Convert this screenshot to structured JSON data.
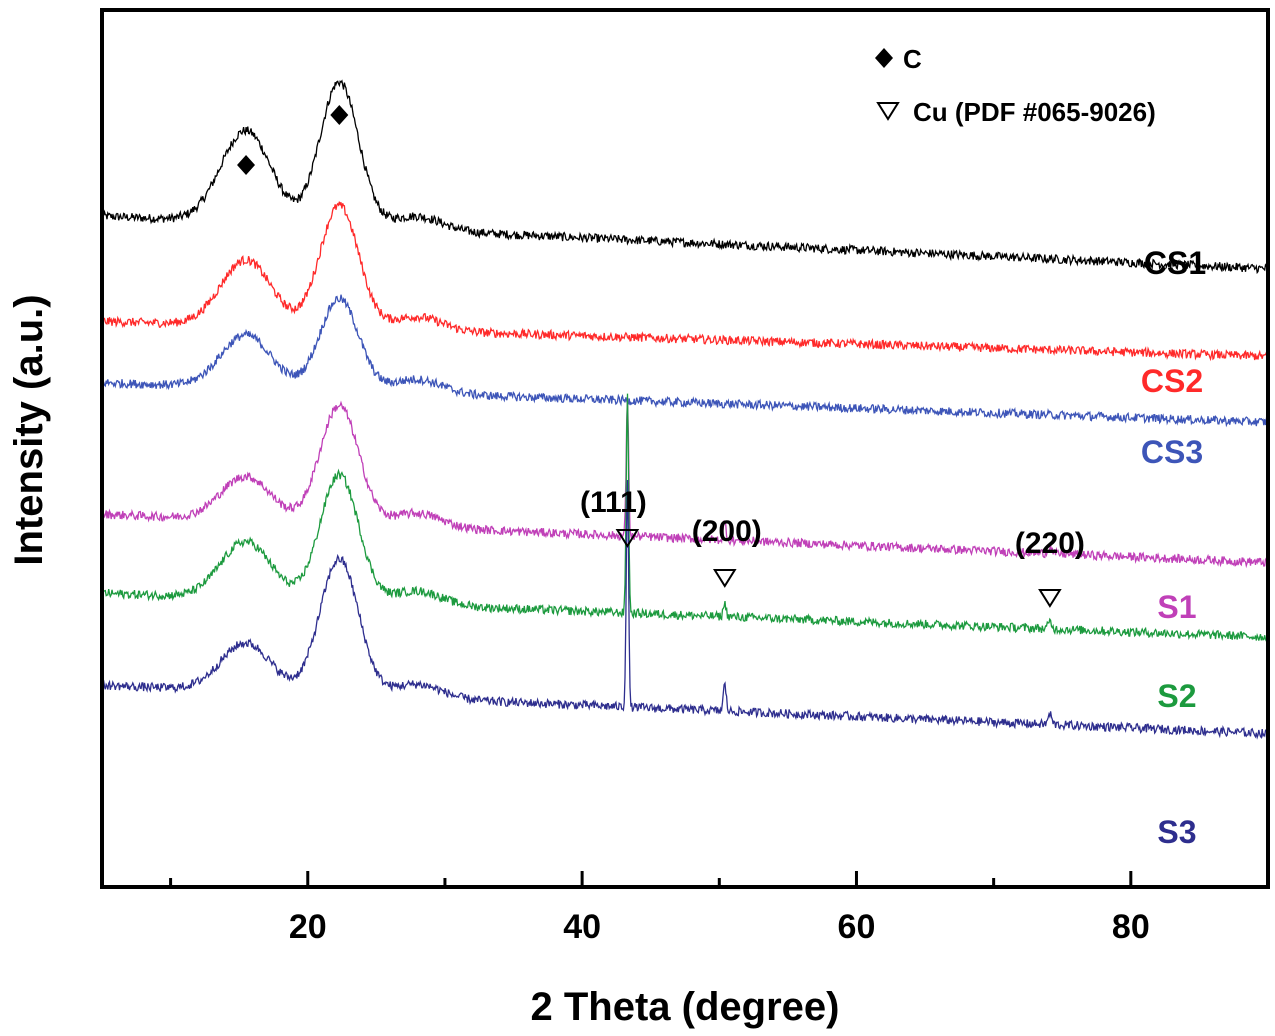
{
  "chart_data": {
    "type": "line",
    "title": "",
    "xlabel": "2 Theta (degree)",
    "ylabel": "Intensity (a.u.)",
    "xlim": [
      5,
      90
    ],
    "ylim": [
      0,
      100
    ],
    "xticks": [
      20,
      40,
      60,
      80
    ],
    "xtick_labels": [
      "20",
      "40",
      "60",
      "80"
    ],
    "yticks": [],
    "grid": false,
    "legend": {
      "position": "top-right",
      "entries": [
        {
          "marker": "filled-diamond",
          "label": "C"
        },
        {
          "marker": "open-triangle-down",
          "label": "Cu (PDF #065-9026)"
        }
      ]
    },
    "series": [
      {
        "name": "CS1",
        "color": "#000000",
        "baseline": 76.5,
        "end": 70.5,
        "peak1": 10.5,
        "peak2": 16.5,
        "cu_peaks": [
          0,
          0,
          0
        ]
      },
      {
        "name": "CS2",
        "color": "#ff2a2a",
        "baseline": 64.5,
        "end": 60.5,
        "peak1": 7.5,
        "peak2": 14.0,
        "cu_peaks": [
          0,
          0,
          0
        ]
      },
      {
        "name": "CS3",
        "color": "#3d55b8",
        "baseline": 57.5,
        "end": 53.0,
        "peak1": 6.0,
        "peak2": 10.5,
        "cu_peaks": [
          0,
          0,
          0
        ]
      },
      {
        "name": "S1",
        "color": "#c040b8",
        "baseline": 42.5,
        "end": 37.0,
        "peak1": 5.0,
        "peak2": 13.5,
        "cu_peaks": [
          16.0,
          2.0,
          0.8
        ]
      },
      {
        "name": "S2",
        "color": "#1c9a3e",
        "baseline": 33.5,
        "end": 28.5,
        "peak1": 6.5,
        "peak2": 14.5,
        "cu_peaks": [
          25.0,
          1.5,
          0.8
        ]
      },
      {
        "name": "S3",
        "color": "#2e2e8e",
        "baseline": 23.0,
        "end": 17.5,
        "peak1": 5.5,
        "peak2": 15.5,
        "cu_peaks": [
          26.0,
          3.0,
          1.2
        ]
      }
    ],
    "carbon_peaks": [
      {
        "two_theta": 15.5,
        "label": "C"
      },
      {
        "two_theta": 22.3,
        "label": "C"
      }
    ],
    "cu_peaks": [
      {
        "two_theta": 43.3,
        "hkl": "(111)"
      },
      {
        "two_theta": 50.4,
        "hkl": "(200)"
      },
      {
        "two_theta": 74.1,
        "hkl": "(220)"
      }
    ]
  }
}
